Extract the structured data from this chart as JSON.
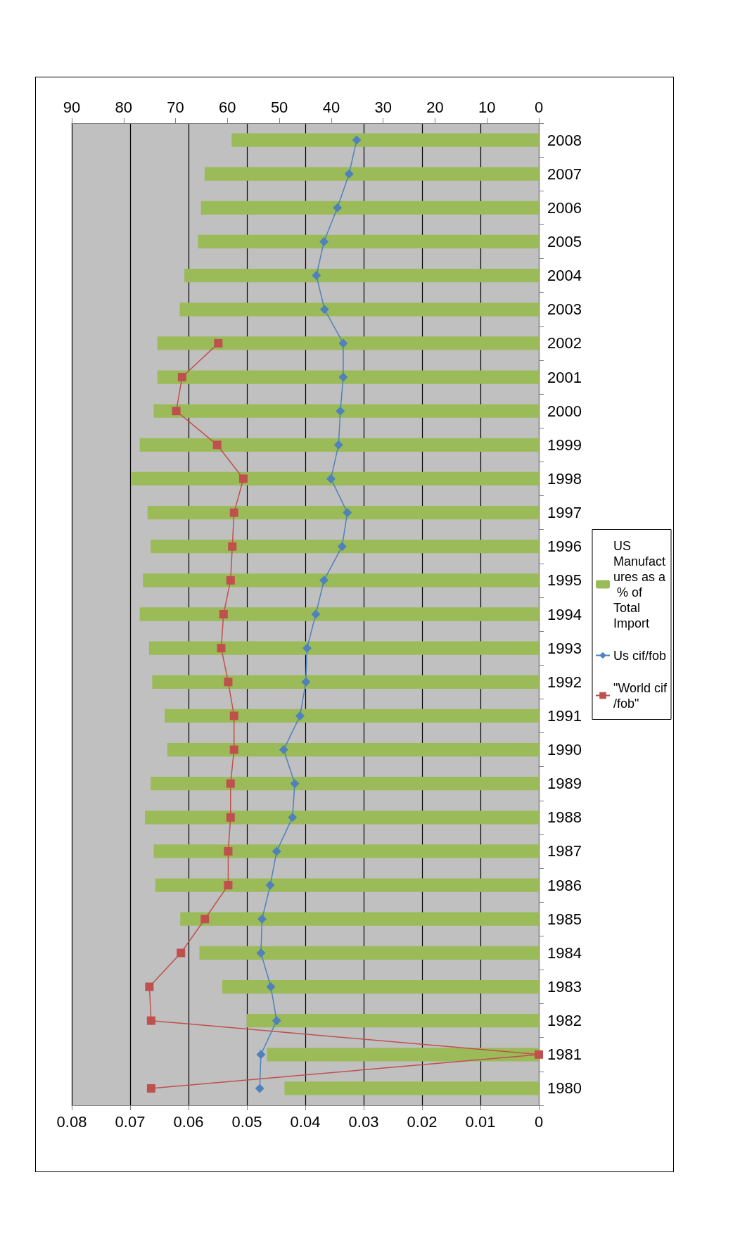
{
  "chart_data": {
    "type": "bar",
    "orientation": "horizontal",
    "categories": [
      "2008",
      "2007",
      "2006",
      "2005",
      "2004",
      "2003",
      "2002",
      "2001",
      "2000",
      "1999",
      "1998",
      "1997",
      "1996",
      "1995",
      "1994",
      "1993",
      "1992",
      "1991",
      "1990",
      "1989",
      "1988",
      "1987",
      "1986",
      "1985",
      "1984",
      "1983",
      "1982",
      "1981",
      "1980"
    ],
    "series": [
      {
        "name": "US Manufactures as a % of Total Import",
        "axis": "x2",
        "color": "#9bbb59",
        "values": [
          59.2,
          64.4,
          65.1,
          65.7,
          68.3,
          69.2,
          73.5,
          73.5,
          74.2,
          76.9,
          78.5,
          75.4,
          74.8,
          76.3,
          76.9,
          75.1,
          74.5,
          72.1,
          71.6,
          74.8,
          75.9,
          74.2,
          73.9,
          69.1,
          65.4,
          61.0,
          56.3,
          52.4,
          49.0
        ]
      },
      {
        "name": "Us cif/fob",
        "type": "line",
        "marker": "diamond",
        "color": "#4f81bd",
        "values": [
          0.0312,
          0.0325,
          0.0345,
          0.0368,
          0.0381,
          0.0367,
          0.0335,
          0.0335,
          0.034,
          0.0343,
          0.0356,
          0.0328,
          0.0337,
          0.0368,
          0.0382,
          0.0397,
          0.0399,
          0.0409,
          0.0437,
          0.0418,
          0.0422,
          0.0449,
          0.046,
          0.0474,
          0.0476,
          0.0459,
          0.0449,
          0.0476,
          0.0478
        ]
      },
      {
        "name": "\"World cif/fob\"",
        "type": "line",
        "marker": "square",
        "color": "#c0504d",
        "values": [
          null,
          null,
          null,
          null,
          null,
          null,
          0.0549,
          0.0611,
          0.0621,
          0.0551,
          0.0506,
          0.0522,
          0.0525,
          0.0528,
          0.054,
          0.0544,
          0.0532,
          0.0522,
          0.0522,
          0.0528,
          0.0528,
          0.0532,
          0.0532,
          0.0572,
          0.0613,
          0.0667,
          0.0664,
          0,
          0.0664
        ]
      }
    ],
    "xlim": [
      0.08,
      0
    ],
    "xticks": [
      0.08,
      0.07,
      0.06,
      0.05,
      0.04,
      0.03,
      0.02,
      0.01,
      0
    ],
    "x2lim": [
      90,
      0
    ],
    "x2ticks": [
      90,
      80,
      70,
      60,
      50,
      40,
      30,
      20,
      10,
      0
    ],
    "grid": "x",
    "legend": "right"
  }
}
